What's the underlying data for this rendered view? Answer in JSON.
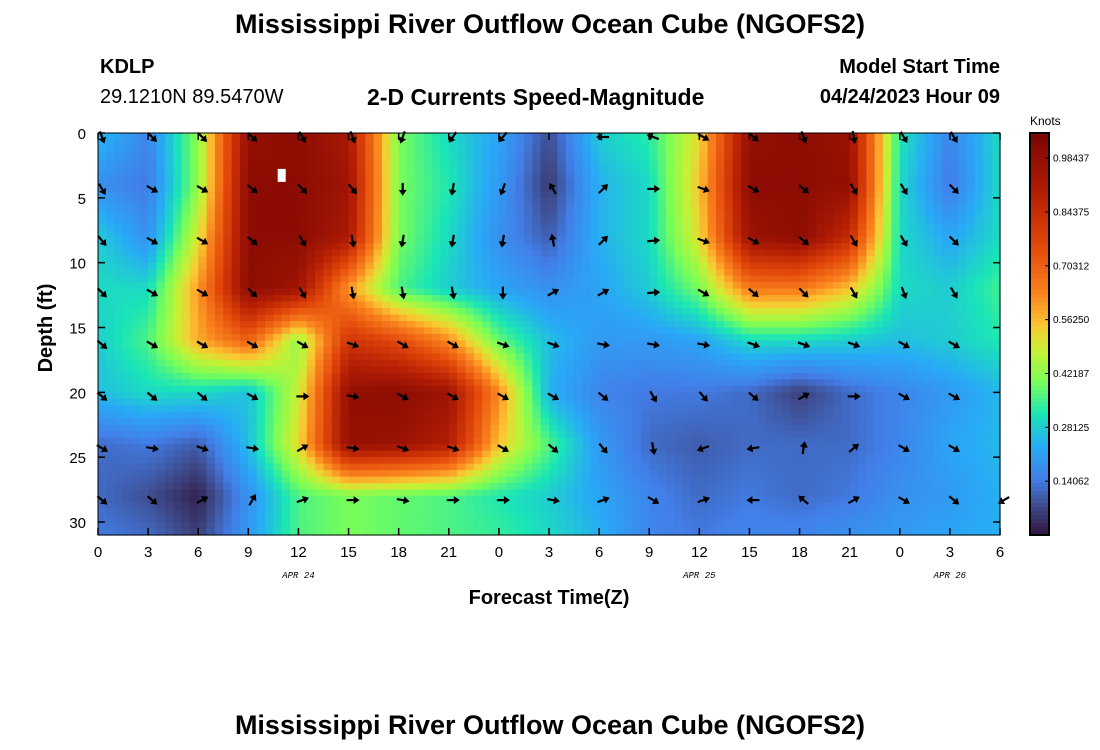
{
  "header": {
    "title": "Mississippi River Outflow Ocean Cube (NGOFS2)",
    "station_id": "KDLP",
    "station_coords": "29.1210N  89.5470W",
    "chart_title": "2-D Currents Speed-Magnitude",
    "model_start_label": "Model Start Time",
    "model_start_value": "04/24/2023 Hour 09"
  },
  "footer": {
    "title": "Mississippi River Outflow Ocean Cube (NGOFS2)"
  },
  "chart_data": {
    "type": "heatmap",
    "xlabel": "Forecast Time(Z)",
    "ylabel": "Depth (ft)",
    "colorbar_label": "Knots",
    "x_tick_labels": [
      "0",
      "3",
      "6",
      "9",
      "12",
      "15",
      "18",
      "21",
      "0",
      "3",
      "6",
      "9",
      "12",
      "15",
      "18",
      "21",
      "0",
      "3",
      "6"
    ],
    "date_labels": [
      {
        "label": "APR 24",
        "x_index": 4
      },
      {
        "label": "APR 25",
        "x_index": 12
      },
      {
        "label": "APR 26",
        "x_index": 17
      }
    ],
    "ylim": [
      0,
      31
    ],
    "y_ticks": [
      0,
      5,
      10,
      15,
      20,
      25,
      30
    ],
    "colorbar_ticks": [
      "0.98437",
      "0.84375",
      "0.70312",
      "0.56250",
      "0.42187",
      "0.28125",
      "0.14062"
    ],
    "colorbar_range": [
      0,
      1.05
    ],
    "grid": false,
    "speed_knots": {
      "time_hours": [
        0,
        3,
        6,
        9,
        12,
        15,
        18,
        21,
        24,
        27,
        30,
        33,
        36,
        39,
        42,
        45,
        48,
        51,
        54
      ],
      "depth_ft": [
        0,
        4,
        8,
        12,
        16,
        20,
        24,
        28,
        31
      ],
      "rows": [
        [
          0.26,
          0.16,
          0.42,
          0.98,
          1.0,
          0.92,
          0.4,
          0.3,
          0.22,
          0.08,
          0.28,
          0.33,
          0.52,
          0.98,
          1.0,
          0.96,
          0.32,
          0.16,
          0.3
        ],
        [
          0.18,
          0.14,
          0.42,
          1.0,
          1.0,
          0.95,
          0.4,
          0.32,
          0.2,
          0.05,
          0.24,
          0.3,
          0.55,
          1.0,
          1.0,
          0.98,
          0.3,
          0.14,
          0.3
        ],
        [
          0.28,
          0.18,
          0.5,
          1.0,
          1.0,
          0.92,
          0.4,
          0.3,
          0.18,
          0.1,
          0.24,
          0.3,
          0.52,
          0.96,
          1.0,
          0.85,
          0.3,
          0.22,
          0.3
        ],
        [
          0.3,
          0.3,
          0.6,
          1.0,
          0.95,
          0.6,
          0.36,
          0.28,
          0.22,
          0.18,
          0.22,
          0.28,
          0.4,
          0.65,
          0.65,
          0.55,
          0.3,
          0.28,
          0.35
        ],
        [
          0.28,
          0.36,
          0.58,
          0.7,
          0.42,
          0.82,
          0.75,
          0.62,
          0.38,
          0.26,
          0.2,
          0.2,
          0.22,
          0.3,
          0.3,
          0.28,
          0.26,
          0.28,
          0.32
        ],
        [
          0.26,
          0.3,
          0.3,
          0.26,
          0.48,
          0.98,
          1.0,
          0.95,
          0.62,
          0.24,
          0.16,
          0.14,
          0.14,
          0.12,
          0.06,
          0.12,
          0.16,
          0.2,
          0.25
        ],
        [
          0.12,
          0.14,
          0.1,
          0.26,
          0.52,
          0.98,
          0.96,
          0.9,
          0.55,
          0.36,
          0.2,
          0.12,
          0.1,
          0.12,
          0.12,
          0.12,
          0.16,
          0.22,
          0.25
        ],
        [
          0.12,
          0.08,
          0.02,
          0.18,
          0.36,
          0.4,
          0.38,
          0.36,
          0.32,
          0.28,
          0.22,
          0.16,
          0.12,
          0.14,
          0.12,
          0.14,
          0.18,
          0.2,
          0.24
        ],
        [
          0.14,
          0.12,
          0.06,
          0.2,
          0.36,
          0.4,
          0.38,
          0.36,
          0.34,
          0.3,
          0.24,
          0.16,
          0.14,
          0.16,
          0.16,
          0.18,
          0.2,
          0.22,
          0.24
        ]
      ]
    },
    "current_direction_deg": {
      "description_units": "degrees, screen angle (0 = pointing right, 90 = pointing down)",
      "time_hours": [
        0,
        3,
        6,
        9,
        12,
        15,
        18,
        21,
        24,
        27,
        30,
        33,
        36,
        39,
        42,
        45,
        48,
        51,
        54
      ],
      "depth_ft": [
        0,
        4,
        8,
        12,
        16,
        20,
        24,
        28
      ],
      "rows": [
        [
          70,
          45,
          45,
          45,
          60,
          70,
          110,
          125,
          130,
          null,
          180,
          200,
          30,
          40,
          70,
          80,
          60,
          60,
          null
        ],
        [
          60,
          30,
          30,
          40,
          45,
          50,
          90,
          100,
          110,
          240,
          315,
          0,
          20,
          30,
          40,
          60,
          60,
          45,
          null
        ],
        [
          50,
          30,
          30,
          40,
          60,
          80,
          100,
          100,
          100,
          260,
          315,
          355,
          20,
          30,
          40,
          60,
          60,
          45,
          null
        ],
        [
          45,
          30,
          30,
          45,
          60,
          80,
          80,
          80,
          90,
          330,
          330,
          355,
          30,
          40,
          45,
          60,
          70,
          60,
          null
        ],
        [
          40,
          30,
          30,
          30,
          30,
          20,
          30,
          30,
          20,
          20,
          10,
          10,
          10,
          20,
          20,
          20,
          30,
          30,
          null
        ],
        [
          40,
          40,
          40,
          30,
          0,
          10,
          30,
          30,
          30,
          30,
          40,
          60,
          50,
          40,
          330,
          0,
          30,
          30,
          null
        ],
        [
          30,
          10,
          20,
          10,
          330,
          10,
          20,
          20,
          30,
          40,
          50,
          80,
          160,
          170,
          280,
          320,
          30,
          30,
          null
        ],
        [
          40,
          40,
          330,
          300,
          340,
          0,
          10,
          0,
          0,
          10,
          340,
          30,
          340,
          180,
          220,
          330,
          30,
          40,
          150
        ]
      ]
    },
    "marker": {
      "time_hours": 11,
      "depth_ft": 3
    }
  }
}
